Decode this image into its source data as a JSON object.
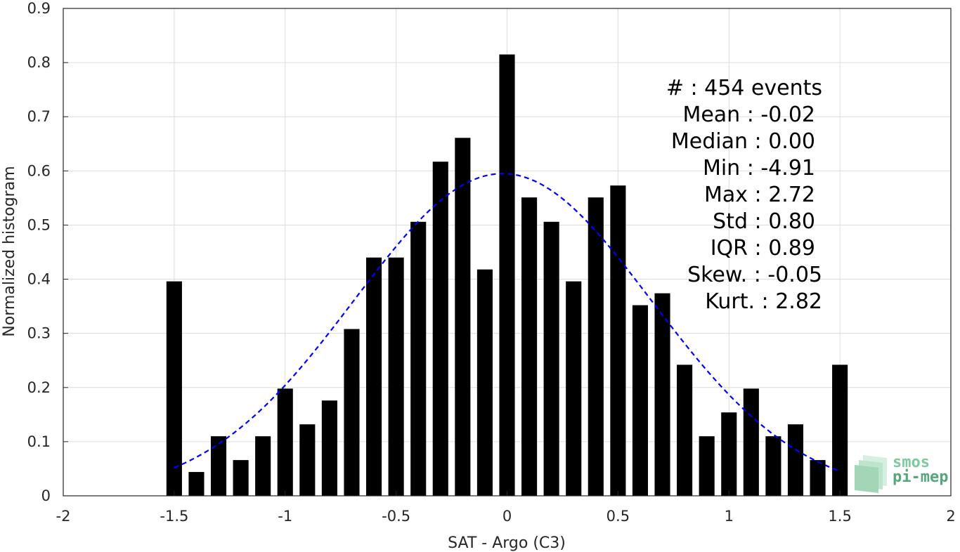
{
  "chart_data": {
    "type": "bar",
    "title": "",
    "xlabel": "SAT - Argo (C3)",
    "ylabel": "Normalized histogram",
    "xlim": [
      -2,
      2
    ],
    "ylim": [
      0,
      0.9
    ],
    "x_ticks": [
      "-2",
      "-1.5",
      "-1",
      "-0.5",
      "0",
      "0.5",
      "1",
      "1.5",
      "2"
    ],
    "y_ticks": [
      "0",
      "0.1",
      "0.2",
      "0.3",
      "0.4",
      "0.5",
      "0.6",
      "0.7",
      "0.8",
      "0.9"
    ],
    "grid": true,
    "bar_width": 0.07,
    "bar_color": "#000000",
    "bars": [
      {
        "x": -1.5,
        "y": 0.396
      },
      {
        "x": -1.4,
        "y": 0.044
      },
      {
        "x": -1.3,
        "y": 0.11
      },
      {
        "x": -1.2,
        "y": 0.066
      },
      {
        "x": -1.1,
        "y": 0.11
      },
      {
        "x": -1.0,
        "y": 0.198
      },
      {
        "x": -0.9,
        "y": 0.132
      },
      {
        "x": -0.8,
        "y": 0.176
      },
      {
        "x": -0.7,
        "y": 0.308
      },
      {
        "x": -0.6,
        "y": 0.44
      },
      {
        "x": -0.5,
        "y": 0.44
      },
      {
        "x": -0.4,
        "y": 0.506
      },
      {
        "x": -0.3,
        "y": 0.617
      },
      {
        "x": -0.2,
        "y": 0.661
      },
      {
        "x": -0.1,
        "y": 0.418
      },
      {
        "x": 0.0,
        "y": 0.815
      },
      {
        "x": 0.1,
        "y": 0.551
      },
      {
        "x": 0.2,
        "y": 0.506
      },
      {
        "x": 0.3,
        "y": 0.396
      },
      {
        "x": 0.4,
        "y": 0.551
      },
      {
        "x": 0.5,
        "y": 0.573
      },
      {
        "x": 0.6,
        "y": 0.352
      },
      {
        "x": 0.7,
        "y": 0.374
      },
      {
        "x": 0.8,
        "y": 0.242
      },
      {
        "x": 0.9,
        "y": 0.11
      },
      {
        "x": 1.0,
        "y": 0.154
      },
      {
        "x": 1.1,
        "y": 0.198
      },
      {
        "x": 1.2,
        "y": 0.11
      },
      {
        "x": 1.3,
        "y": 0.132
      },
      {
        "x": 1.4,
        "y": 0.066
      },
      {
        "x": 1.5,
        "y": 0.242
      }
    ],
    "fit_curve": {
      "type": "gaussian",
      "mean": -0.02,
      "std": 0.67,
      "peak": 0.595,
      "x_range": [
        -1.5,
        1.5
      ],
      "color": "#0000ff",
      "style": "dashed"
    }
  },
  "stats": [
    {
      "label": "#  : 454 events"
    },
    {
      "label": "Mean : -0.02"
    },
    {
      "label": "Median : 0.00"
    },
    {
      "label": "Min : -4.91"
    },
    {
      "label": "Max : 2.72"
    },
    {
      "label": "Std : 0.80"
    },
    {
      "label": "IQR : 0.89"
    },
    {
      "label": "Skew. : -0.05"
    },
    {
      "label": "Kurt. : 2.82"
    }
  ],
  "logo": {
    "line1": "smos",
    "line2": "pi-mep",
    "color_line1": "#7fc9a1",
    "color_line2": "#5aa57c"
  }
}
